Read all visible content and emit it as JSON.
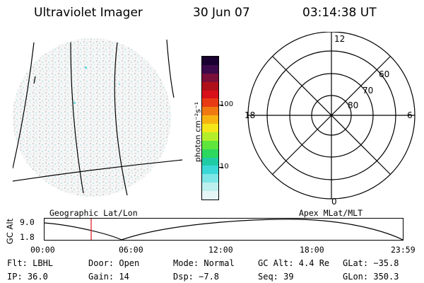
{
  "header": {
    "instrument": "Ultraviolet Imager",
    "date": "30 Jun 07",
    "time": "03:14:38 UT"
  },
  "colorbar": {
    "unit_label": "photon cm⁻²s⁻¹",
    "ticks": [
      "100",
      "10"
    ],
    "colors": [
      "#1a0030",
      "#3c0a4a",
      "#7a0f3a",
      "#b0101a",
      "#d8101a",
      "#e83a14",
      "#f07a10",
      "#f7b410",
      "#f4e61a",
      "#b4ee2a",
      "#5fe63c",
      "#2cd85e",
      "#20cca6",
      "#3cd8d8",
      "#7ee6e6",
      "#bdefef",
      "#e6f6f6"
    ]
  },
  "polar": {
    "mlt_labels": {
      "top": "12",
      "left": "18",
      "right": "6",
      "bottom": "0"
    },
    "lat_labels": [
      "60",
      "70",
      "80"
    ]
  },
  "altplot": {
    "left_title": "Geographic Lat/Lon",
    "right_title": "Apex MLat/MLT",
    "axis_label": "GC Alt",
    "y_max": "9.0",
    "y_min": "1.8",
    "x_ticks": [
      "00:00",
      "06:00",
      "12:00",
      "18:00",
      "23:59"
    ]
  },
  "footer": {
    "flt": "Flt: LBHL",
    "door": "Door: Open",
    "mode": "Mode: Normal",
    "gcalt": "GC Alt: 4.4 Re",
    "glat": "GLat: −35.8",
    "ip": "IP: 36.0",
    "gain": "Gain: 14",
    "dsp": "Dsp:   −7.8",
    "seq": "Seq: 39",
    "glon": "GLon: 350.3"
  }
}
